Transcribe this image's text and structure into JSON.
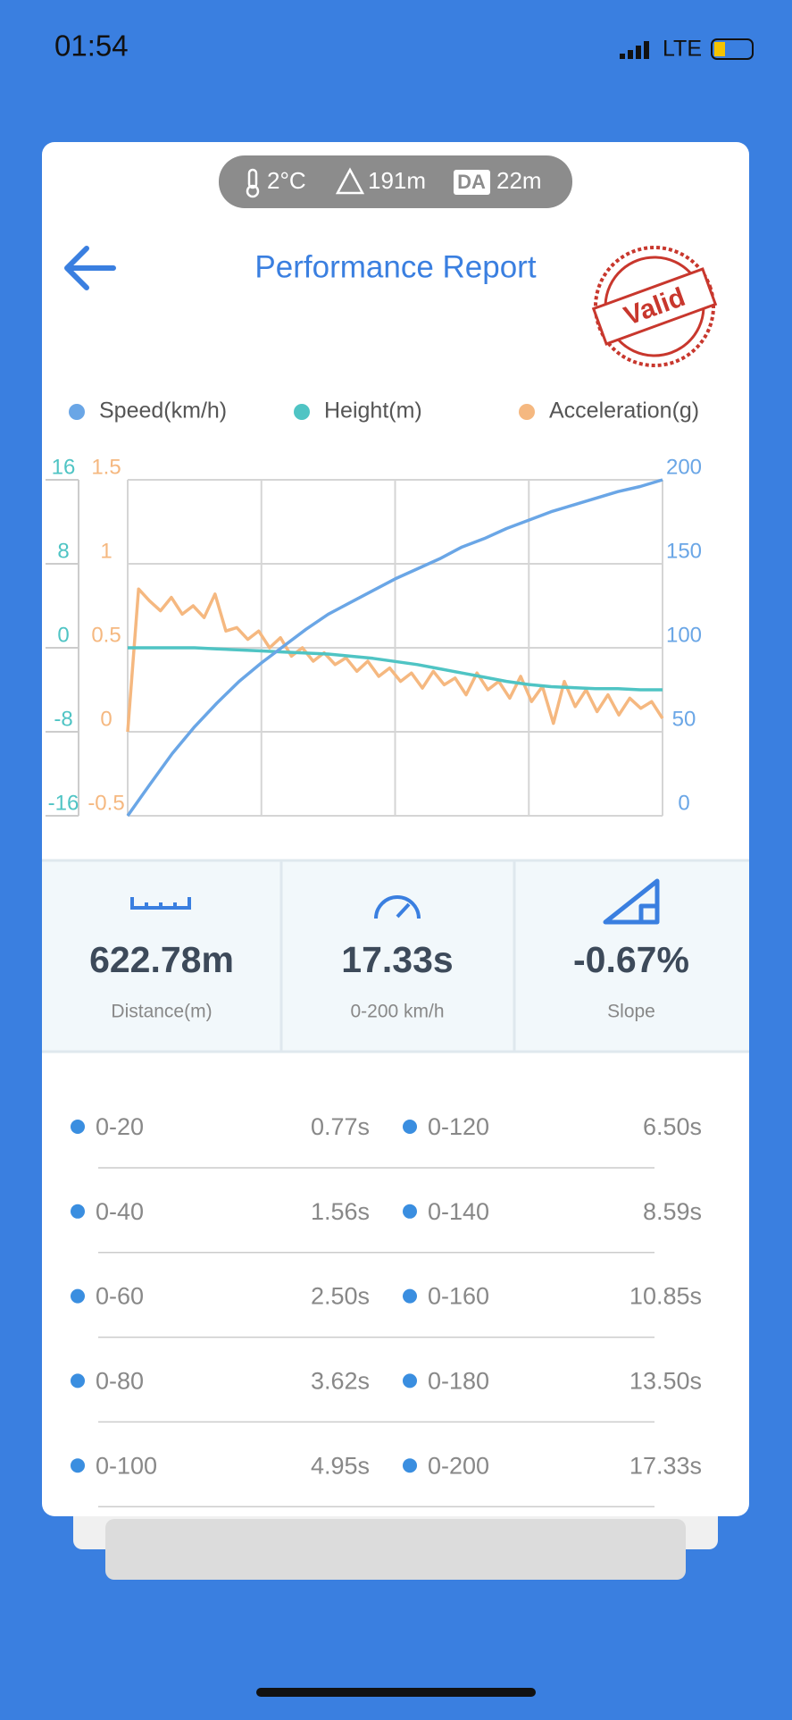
{
  "status_bar": {
    "time": "01:54",
    "network": "LTE"
  },
  "conditions": {
    "temperature": "2°C",
    "altitude": "191m",
    "da_label": "DA",
    "density_altitude": "22m"
  },
  "header": {
    "title": "Performance Report",
    "stamp": "Valid"
  },
  "chart_data": {
    "type": "line",
    "series": [
      {
        "name": "Speed(km/h)",
        "color": "#6aa6e6",
        "axis": "y2",
        "values": [
          0,
          18.8,
          37,
          53,
          67,
          80,
          91,
          101,
          111,
          120,
          127,
          134,
          141,
          147,
          153,
          160,
          165,
          171,
          176,
          181,
          185,
          189,
          193,
          196,
          200
        ]
      },
      {
        "name": "Height(m)",
        "color": "#4fc4c4",
        "values": [
          0,
          0,
          0,
          0,
          -0.1,
          -0.2,
          -0.3,
          -0.4,
          -0.5,
          -0.6,
          -0.8,
          -1,
          -1.3,
          -1.6,
          -2,
          -2.4,
          -2.8,
          -3.2,
          -3.5,
          -3.7,
          -3.8,
          -3.9,
          -3.9,
          -4,
          -4
        ]
      },
      {
        "name": "Acceleration(g)",
        "color": "#f5b880",
        "axis": "y3",
        "values": [
          0,
          0.85,
          0.78,
          0.72,
          0.8,
          0.7,
          0.75,
          0.68,
          0.82,
          0.6,
          0.62,
          0.55,
          0.6,
          0.5,
          0.56,
          0.45,
          0.5,
          0.42,
          0.47,
          0.4,
          0.44,
          0.36,
          0.42,
          0.33,
          0.38,
          0.3,
          0.35,
          0.26,
          0.36,
          0.28,
          0.32,
          0.22,
          0.35,
          0.25,
          0.3,
          0.2,
          0.33,
          0.18,
          0.27,
          0.05,
          0.3,
          0.15,
          0.25,
          0.12,
          0.22,
          0.1,
          0.2,
          0.14,
          0.18,
          0.08
        ]
      }
    ],
    "ylim": [
      -16,
      16
    ],
    "yticks": [
      -16,
      -8,
      0,
      8,
      16
    ],
    "y2lim": [
      0,
      200
    ],
    "y2ticks": [
      0,
      50,
      100,
      150,
      200
    ],
    "y3lim": [
      -0.5,
      1.5
    ],
    "y3ticks": [
      -0.5,
      0,
      0.5,
      1,
      1.5
    ],
    "grid": true
  },
  "stats": [
    {
      "value": "622.78m",
      "label": "Distance(m)"
    },
    {
      "value": "17.33s",
      "label": "0-200 km/h"
    },
    {
      "value": "-0.67%",
      "label": "Slope"
    }
  ],
  "splits": [
    {
      "range": "0-20",
      "time": "0.77s"
    },
    {
      "range": "0-40",
      "time": "1.56s"
    },
    {
      "range": "0-60",
      "time": "2.50s"
    },
    {
      "range": "0-80",
      "time": "3.62s"
    },
    {
      "range": "0-100",
      "time": "4.95s"
    },
    {
      "range": "0-120",
      "time": "6.50s"
    },
    {
      "range": "0-140",
      "time": "8.59s"
    },
    {
      "range": "0-160",
      "time": "10.85s"
    },
    {
      "range": "0-180",
      "time": "13.50s"
    },
    {
      "range": "0-200",
      "time": "17.33s"
    }
  ]
}
